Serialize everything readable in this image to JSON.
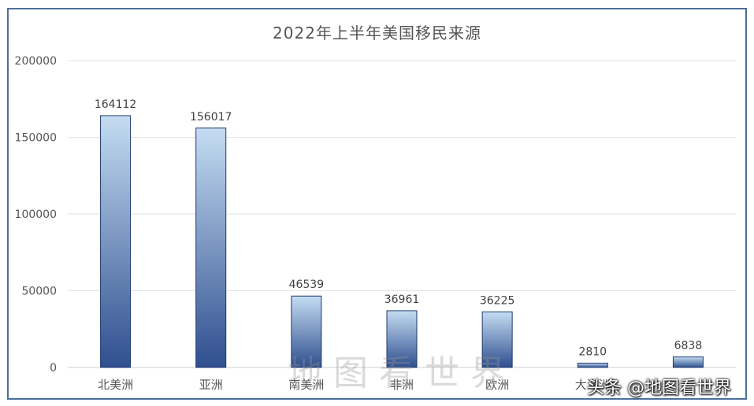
{
  "chart_data": {
    "type": "bar",
    "title": "2022年上半年美国移民来源",
    "categories": [
      "北美洲",
      "亚洲",
      "南美洲",
      "非洲",
      "欧洲",
      "大洋洲",
      ""
    ],
    "values": [
      164112,
      156017,
      46539,
      36961,
      36225,
      2810,
      6838
    ],
    "data_labels": [
      "164112",
      "156017",
      "46539",
      "36961",
      "36225",
      "2810",
      "6838"
    ],
    "ylim": [
      0,
      200000
    ],
    "yticks": [
      0,
      50000,
      100000,
      150000,
      200000
    ],
    "ytick_labels": [
      "0",
      "50000",
      "100000",
      "150000",
      "200000"
    ],
    "grid": true,
    "bar_gradient": {
      "top": "#c5dcf2",
      "bottom": "#2f4f8f"
    }
  },
  "watermark": "地图看世界",
  "source": "头条 @地图看世界"
}
